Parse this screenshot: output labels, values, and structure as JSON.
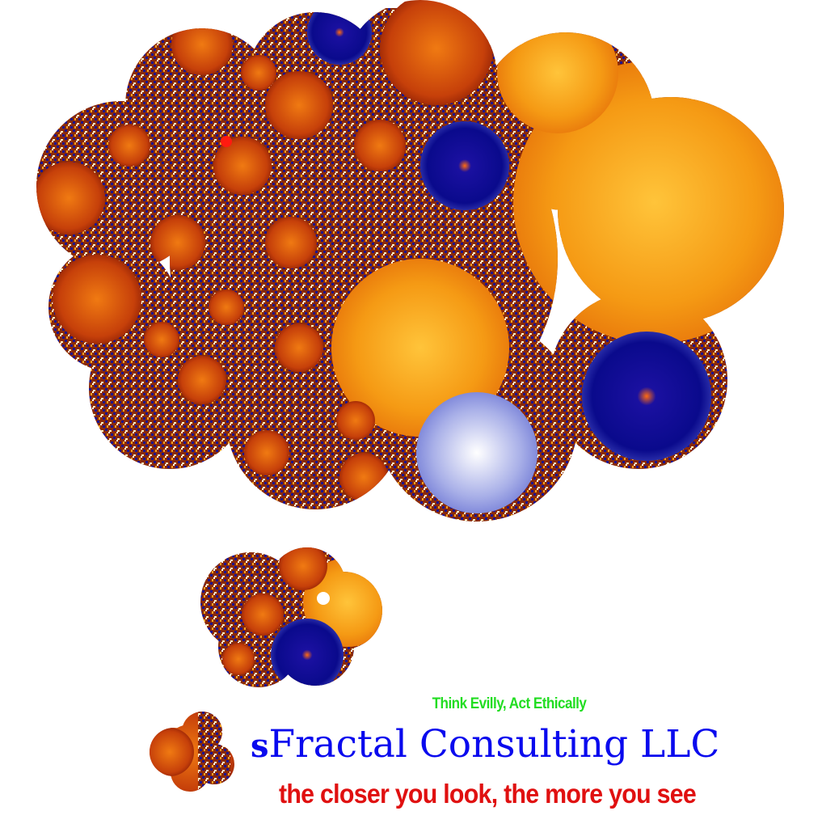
{
  "logo": {
    "name": "thought-cloud-fractal-logo",
    "palette": {
      "orange": "#f7a21b",
      "deep_orange": "#e05a0a",
      "dark_red": "#8b1a02",
      "navy": "#0a0a8c",
      "light_blue": "#7a84d8",
      "cream": "#fff6c8",
      "white": "#ffffff"
    }
  },
  "tagline": {
    "text": "Think Evilly, Act Ethically",
    "color": "#22dd22"
  },
  "company": {
    "lead_letter": "s",
    "rest": "Fractal Consulting LLC",
    "color": "#0a0aee"
  },
  "motto": {
    "text": "the closer you look, the more you see",
    "color": "#e01010"
  }
}
